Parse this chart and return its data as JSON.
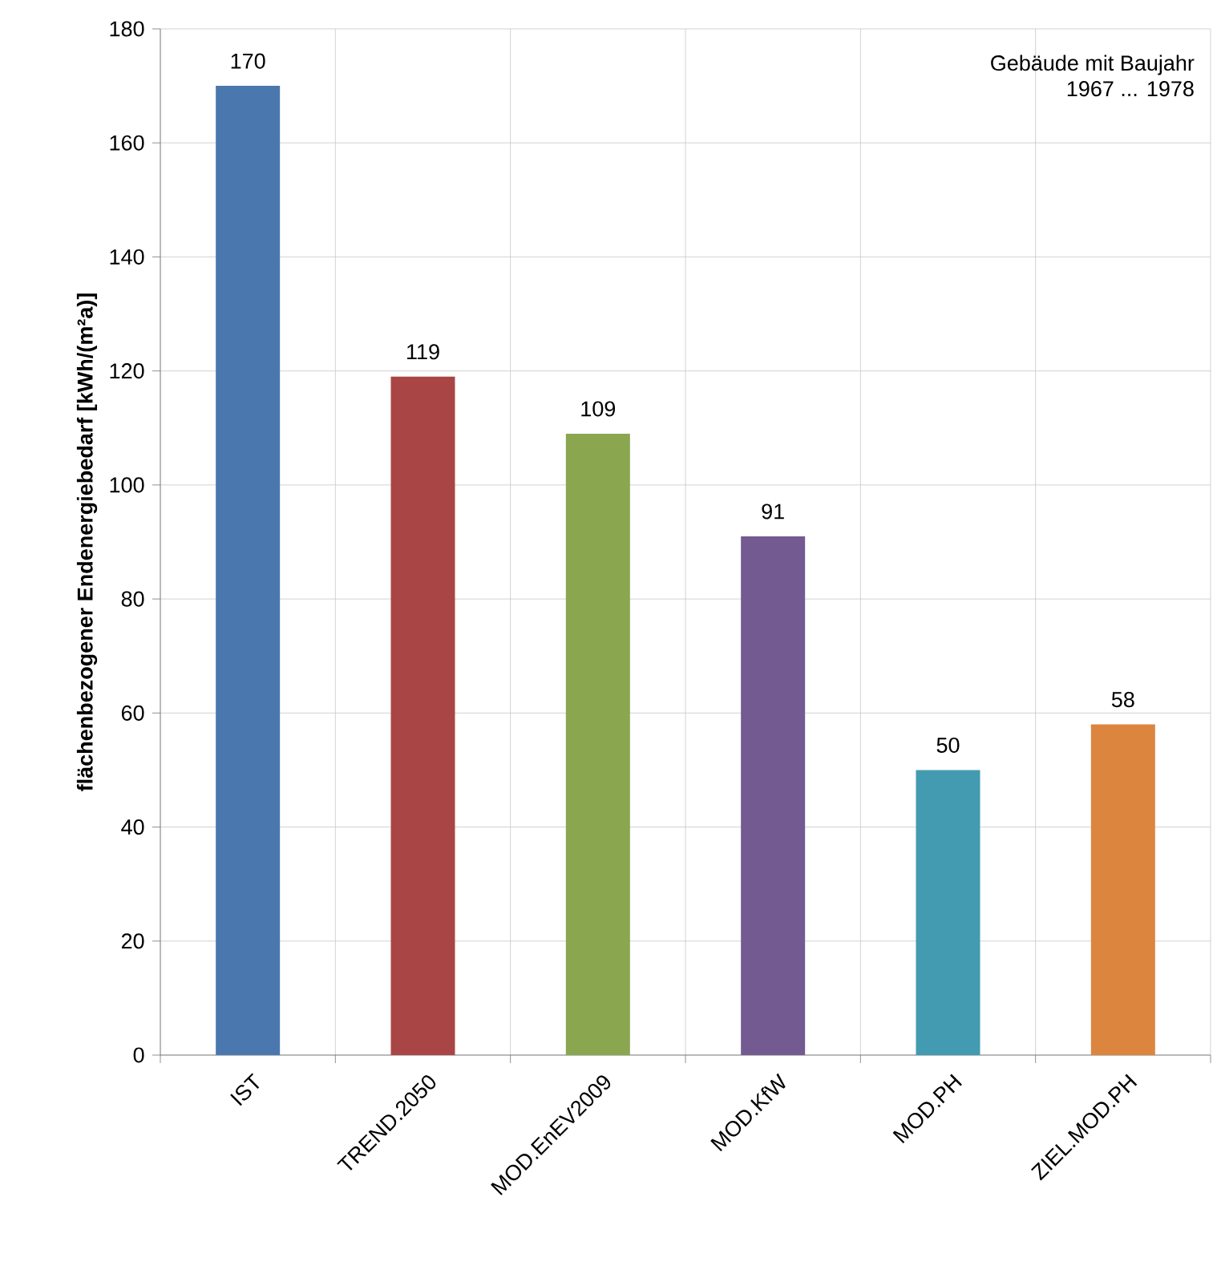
{
  "chart_data": {
    "type": "bar",
    "ylabel": "flächenbezogener Endenergiebedarf [kWh/(m²a)]",
    "categories": [
      "IST",
      "TREND.2050",
      "MOD.EnEV2009",
      "MOD.KfW",
      "MOD.PH",
      "ZIEL.MOD.PH"
    ],
    "values": [
      170,
      119,
      109,
      91,
      50,
      58
    ],
    "colors": [
      "#4a78ae",
      "#a94645",
      "#8aa64f",
      "#735a91",
      "#439bb1",
      "#dc853f"
    ],
    "ylim": [
      0,
      180
    ],
    "yticks": [
      0,
      20,
      40,
      60,
      80,
      100,
      120,
      140,
      160,
      180
    ],
    "grid": true,
    "data_labels": true,
    "annotations": [
      "Gebäude mit Baujahr",
      "1967 ... 1978"
    ]
  }
}
